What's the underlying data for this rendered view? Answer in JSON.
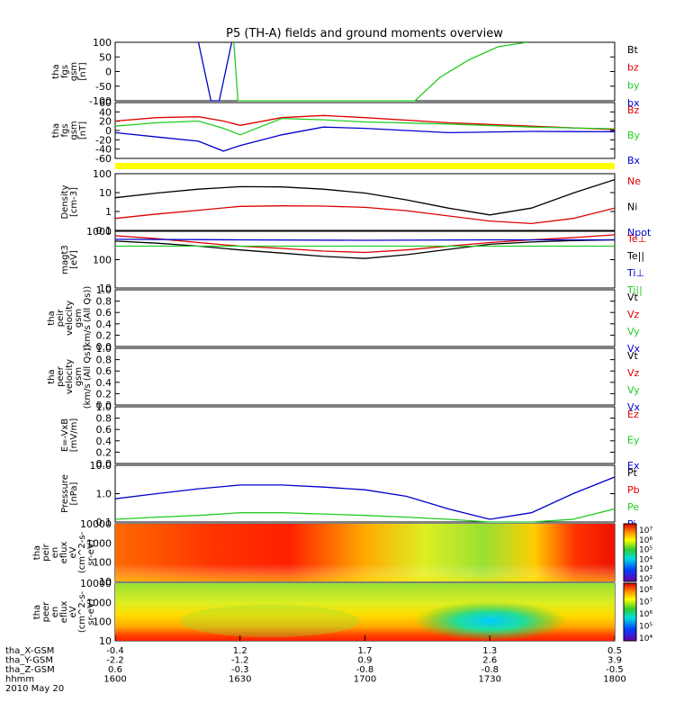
{
  "title": "P5 (TH-A) fields and ground moments overview",
  "colors": {
    "black": "#000000",
    "red": "#dd0000",
    "green": "#22cc22",
    "blue": "#0000cc",
    "yellow": "#ffff00"
  },
  "panels": [
    {
      "id": "fgs-bt",
      "ylabel": [
        "tha",
        "fgs",
        "gsm",
        "[nT]"
      ],
      "ticks": [
        "100",
        "50",
        "0",
        "-50",
        "-100"
      ],
      "legend": [
        {
          "text": "Bt",
          "color": "black"
        },
        {
          "text": "bz",
          "color": "red"
        },
        {
          "text": "by",
          "color": "green"
        },
        {
          "text": "bx",
          "color": "blue"
        }
      ]
    },
    {
      "id": "fgs-b",
      "ylabel": [
        "tha",
        "fgs",
        "gsm",
        "[nT]"
      ],
      "ticks": [
        "60",
        "40",
        "20",
        "0",
        "-20",
        "-40",
        "-60"
      ],
      "legend": [
        {
          "text": "Bz",
          "color": "red"
        },
        {
          "text": "By",
          "color": "green"
        },
        {
          "text": "Bx",
          "color": "blue"
        }
      ]
    },
    {
      "id": "density",
      "ylabel": [
        "Density",
        "[cm-3]"
      ],
      "ticks": [
        "100",
        "10",
        "1",
        "0.1"
      ],
      "legend": [
        {
          "text": "Ne",
          "color": "red"
        },
        {
          "text": "Ni",
          "color": "black"
        },
        {
          "text": "Npot",
          "color": "blue"
        }
      ]
    },
    {
      "id": "temperature",
      "ylabel": [
        "magt3",
        "[eV]"
      ],
      "ticks": [
        "1000",
        "100",
        "10"
      ],
      "legend": [
        {
          "text": "Te⊥",
          "color": "red"
        },
        {
          "text": "Te||",
          "color": "black"
        },
        {
          "text": "Ti⊥",
          "color": "blue"
        },
        {
          "text": "Ti||",
          "color": "green"
        }
      ]
    },
    {
      "id": "peir-velocity",
      "ylabel": [
        "tha",
        "peir",
        "velocity",
        "gsm",
        "(km/s (All Qs))"
      ],
      "ticks": [
        "1.0",
        "0.8",
        "0.6",
        "0.4",
        "0.2",
        "0.0"
      ],
      "legend": [
        {
          "text": "Vt",
          "color": "black"
        },
        {
          "text": "Vz",
          "color": "red"
        },
        {
          "text": "Vy",
          "color": "green"
        },
        {
          "text": "Vx",
          "color": "blue"
        }
      ]
    },
    {
      "id": "peer-velocity",
      "ylabel": [
        "tha",
        "peer",
        "velocity",
        "gsm",
        "(km/s (All Qs))"
      ],
      "ticks": [
        "1.0",
        "0.8",
        "0.6",
        "0.4",
        "0.2",
        "0.0"
      ],
      "legend": [
        {
          "text": "Vt",
          "color": "black"
        },
        {
          "text": "Vz",
          "color": "red"
        },
        {
          "text": "Vy",
          "color": "green"
        },
        {
          "text": "Vx",
          "color": "blue"
        }
      ]
    },
    {
      "id": "efield",
      "ylabel": [
        "E=-VxB",
        "[mV/m]"
      ],
      "ticks": [
        "1.0",
        "0.8",
        "0.6",
        "0.4",
        "0.2",
        "0.0"
      ],
      "legend": [
        {
          "text": "Ez",
          "color": "red"
        },
        {
          "text": "Ey",
          "color": "green"
        },
        {
          "text": "Ex",
          "color": "blue"
        }
      ]
    },
    {
      "id": "pressure",
      "ylabel": [
        "Pressure",
        "[nPa]"
      ],
      "ticks": [
        "10.0",
        "1.0",
        "0.1"
      ],
      "legend": [
        {
          "text": "Pt",
          "color": "black"
        },
        {
          "text": "Pb",
          "color": "red"
        },
        {
          "text": "Pe",
          "color": "green"
        },
        {
          "text": "Pi",
          "color": "blue"
        }
      ]
    },
    {
      "id": "peir-spectrogram",
      "ylabel": [
        "tha",
        "peir",
        "en",
        "eflux",
        "eV",
        "(cm^2-s-",
        "sr-eV)"
      ],
      "ticks": [
        "10000",
        "1000",
        "100",
        "10"
      ],
      "colorbar": [
        "10⁷",
        "10⁶",
        "10⁵",
        "10⁴",
        "10³",
        "10²"
      ]
    },
    {
      "id": "peer-spectrogram",
      "ylabel": [
        "tha",
        "peer",
        "en",
        "eflux",
        "eV",
        "(cm^2-s-",
        "sr-eV)"
      ],
      "ticks": [
        "10000",
        "1000",
        "100",
        "10"
      ],
      "colorbar": [
        "10⁸",
        "10⁷",
        "10⁶",
        "10⁵",
        "10⁴"
      ]
    }
  ],
  "xaxis": {
    "labels": [
      "tha_X-GSM",
      "tha_Y-GSM",
      "tha_Z-GSM",
      "hhmm",
      "2010 May 20"
    ],
    "rows": [
      [
        "-0.4",
        "1.2",
        "1.7",
        "1.3",
        "0.5"
      ],
      [
        "-2.2",
        "-1.2",
        "0.9",
        "2.6",
        "3.9"
      ],
      [
        "0.6",
        "-0.3",
        "-0.8",
        "-0.8",
        "-0.5"
      ],
      [
        "1600",
        "1630",
        "1700",
        "1730",
        "1800"
      ]
    ]
  },
  "chart_data": {
    "type": "line",
    "x_times": [
      "1600",
      "1630",
      "1700",
      "1730",
      "1800"
    ],
    "fgs_bt": {
      "ylim": [
        -100,
        100
      ],
      "series": [
        {
          "name": "bx",
          "color": "blue",
          "x": [
            1620,
            1623,
            1625,
            1628
          ],
          "y": [
            100,
            -100,
            -100,
            100
          ]
        },
        {
          "name": "by",
          "color": "green",
          "x": [
            1628.5,
            1629.5,
            1712,
            1718,
            1725,
            1732,
            1739
          ],
          "y": [
            100,
            -100,
            -100,
            -20,
            40,
            85,
            100
          ]
        }
      ]
    },
    "fgs_b": {
      "ylim": [
        -65,
        65
      ],
      "series": [
        {
          "name": "Bz",
          "color": "red",
          "x": [
            1600,
            1610,
            1620,
            1626,
            1630,
            1640,
            1650,
            1700,
            1720,
            1740,
            1800
          ],
          "y": [
            22,
            30,
            32,
            22,
            12,
            30,
            35,
            30,
            18,
            10,
            2
          ]
        },
        {
          "name": "By",
          "color": "green",
          "x": [
            1600,
            1610,
            1620,
            1626,
            1630,
            1640,
            1650,
            1700,
            1720,
            1740,
            1800
          ],
          "y": [
            10,
            18,
            22,
            5,
            -10,
            28,
            25,
            20,
            15,
            8,
            4
          ]
        },
        {
          "name": "Bx",
          "color": "blue",
          "x": [
            1600,
            1610,
            1620,
            1626,
            1630,
            1640,
            1650,
            1700,
            1720,
            1740,
            1800
          ],
          "y": [
            -5,
            -15,
            -25,
            -48,
            -35,
            -10,
            8,
            5,
            -5,
            -2,
            -3
          ]
        }
      ]
    },
    "density": {
      "scale": "log",
      "ylim": [
        0.1,
        200
      ],
      "series": [
        {
          "name": "Ni",
          "color": "black",
          "x": [
            1600,
            1610,
            1620,
            1630,
            1640,
            1650,
            1700,
            1710,
            1720,
            1730,
            1740,
            1750,
            1800
          ],
          "y": [
            8,
            15,
            25,
            35,
            34,
            25,
            15,
            6,
            2,
            0.8,
            2,
            15,
            90
          ]
        },
        {
          "name": "Ne",
          "color": "red",
          "x": [
            1600,
            1610,
            1620,
            1630,
            1640,
            1650,
            1700,
            1710,
            1720,
            1730,
            1740,
            1750,
            1800
          ],
          "y": [
            0.5,
            0.9,
            1.5,
            2.5,
            2.7,
            2.6,
            2.2,
            1.4,
            0.7,
            0.35,
            0.25,
            0.5,
            2.0
          ]
        }
      ]
    },
    "temperature": {
      "scale": "log",
      "ylim": [
        10,
        1000
      ],
      "series": [
        {
          "name": "Te⊥",
          "color": "red",
          "x": [
            1600,
            1610,
            1620,
            1630,
            1640,
            1650,
            1700,
            1710,
            1720,
            1730,
            1740,
            1750,
            1800
          ],
          "y": [
            700,
            550,
            400,
            300,
            250,
            200,
            180,
            220,
            300,
            400,
            500,
            600,
            750
          ]
        },
        {
          "name": "Te||",
          "color": "black",
          "x": [
            1600,
            1610,
            1620,
            1630,
            1640,
            1650,
            1700,
            1710,
            1720,
            1730,
            1740,
            1750,
            1800
          ],
          "y": [
            450,
            380,
            300,
            220,
            170,
            130,
            110,
            150,
            230,
            350,
            420,
            470,
            500
          ]
        },
        {
          "name": "Ti⊥",
          "color": "blue",
          "x": [
            1600,
            1630,
            1700,
            1730,
            1800
          ],
          "y": [
            520,
            500,
            480,
            500,
            500
          ]
        },
        {
          "name": "Ti||",
          "color": "green",
          "x": [
            1600,
            1630,
            1700,
            1730,
            1800
          ],
          "y": [
            300,
            300,
            300,
            300,
            300
          ]
        }
      ]
    },
    "pressure": {
      "scale": "log",
      "ylim": [
        0.03,
        12
      ],
      "series": [
        {
          "name": "Pi",
          "color": "blue",
          "x": [
            1600,
            1610,
            1620,
            1630,
            1640,
            1650,
            1700,
            1710,
            1720,
            1730,
            1740,
            1750,
            1800
          ],
          "y": [
            0.35,
            0.6,
            1.0,
            1.5,
            1.5,
            1.2,
            0.9,
            0.45,
            0.12,
            0.04,
            0.08,
            0.6,
            3.5
          ]
        },
        {
          "name": "Pe",
          "color": "green",
          "x": [
            1600,
            1610,
            1620,
            1630,
            1640,
            1650,
            1700,
            1710,
            1720,
            1730,
            1740,
            1750,
            1800
          ],
          "y": [
            0.04,
            0.05,
            0.06,
            0.08,
            0.08,
            0.07,
            0.06,
            0.05,
            0.04,
            0.03,
            0.03,
            0.04,
            0.12
          ]
        }
      ]
    }
  }
}
